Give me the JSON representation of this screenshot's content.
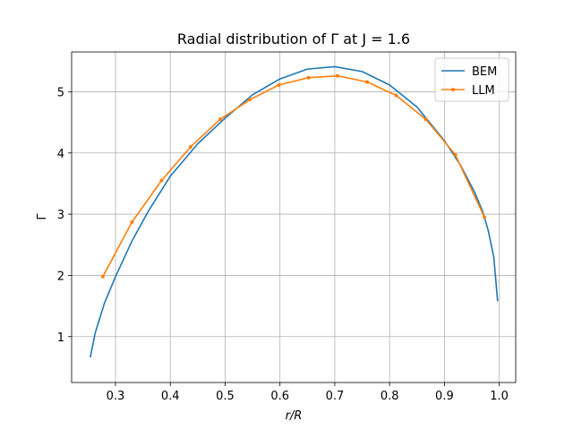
{
  "chart_data": {
    "type": "line",
    "title": "Radial distribution of Γ at J = 1.6",
    "xlabel": "r/R",
    "ylabel": "Γ",
    "xlim": [
      0.22,
      1.03
    ],
    "ylim": [
      0.25,
      5.65
    ],
    "xticks": [
      0.3,
      0.4,
      0.5,
      0.6,
      0.7,
      0.8,
      0.9,
      1.0
    ],
    "xtick_labels": [
      "0.3",
      "0.4",
      "0.5",
      "0.6",
      "0.7",
      "0.8",
      "0.9",
      "1.0"
    ],
    "yticks": [
      1,
      2,
      3,
      4,
      5
    ],
    "ytick_labels": [
      "1",
      "2",
      "3",
      "4",
      "5"
    ],
    "grid": true,
    "legend_position": "top-right",
    "series": [
      {
        "name": "BEM",
        "color": "#1f77b4",
        "marker": "none",
        "x": [
          0.254,
          0.263,
          0.28,
          0.3,
          0.33,
          0.36,
          0.4,
          0.45,
          0.5,
          0.55,
          0.6,
          0.65,
          0.7,
          0.75,
          0.8,
          0.85,
          0.9,
          0.93,
          0.955,
          0.97,
          0.98,
          0.99,
          0.997
        ],
        "y": [
          0.66,
          1.06,
          1.55,
          1.98,
          2.56,
          3.05,
          3.62,
          4.15,
          4.57,
          4.95,
          5.21,
          5.37,
          5.41,
          5.33,
          5.11,
          4.75,
          4.2,
          3.79,
          3.36,
          3.04,
          2.73,
          2.3,
          1.58
        ]
      },
      {
        "name": "LLM",
        "color": "#ff7f0e",
        "marker": "circle",
        "x": [
          0.277,
          0.33,
          0.384,
          0.437,
          0.491,
          0.545,
          0.598,
          0.652,
          0.705,
          0.759,
          0.812,
          0.866,
          0.92,
          0.973
        ],
        "y": [
          1.98,
          2.87,
          3.55,
          4.1,
          4.55,
          4.87,
          5.11,
          5.23,
          5.26,
          5.16,
          4.94,
          4.55,
          3.97,
          2.95
        ]
      }
    ]
  }
}
